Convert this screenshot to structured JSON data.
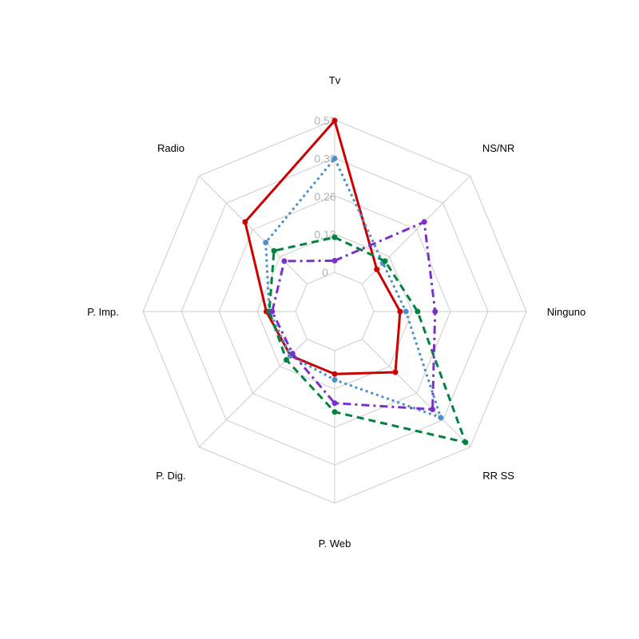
{
  "chart_data": {
    "type": "radar",
    "axes": [
      "Tv",
      "NS/NR",
      "Ninguno",
      "RR SS",
      "P. Web",
      "P. Dig.",
      "P. Imp.",
      "Radio"
    ],
    "tick_labels": [
      "0",
      "0.13",
      "0.26",
      "0.39",
      "0.52"
    ],
    "r_range": [
      0,
      0.52
    ],
    "grid": true,
    "series": [
      {
        "color": "#cc0000",
        "line": "solid",
        "values": [
          0.52,
          0.07,
          0.09,
          0.16,
          0.08,
          0.08,
          0.1,
          0.3
        ]
      },
      {
        "color": "#4a90c8",
        "line": "dotted",
        "values": [
          0.39,
          0.1,
          0.11,
          0.38,
          0.1,
          0.08,
          0.09,
          0.2
        ]
      },
      {
        "color": "#00843d",
        "line": "dashed",
        "values": [
          0.12,
          0.11,
          0.15,
          0.5,
          0.21,
          0.1,
          0.09,
          0.16
        ]
      },
      {
        "color": "#7b2fcc",
        "line": "dashdot",
        "values": [
          0.04,
          0.3,
          0.21,
          0.34,
          0.18,
          0.07,
          0.08,
          0.11
        ]
      }
    ]
  }
}
